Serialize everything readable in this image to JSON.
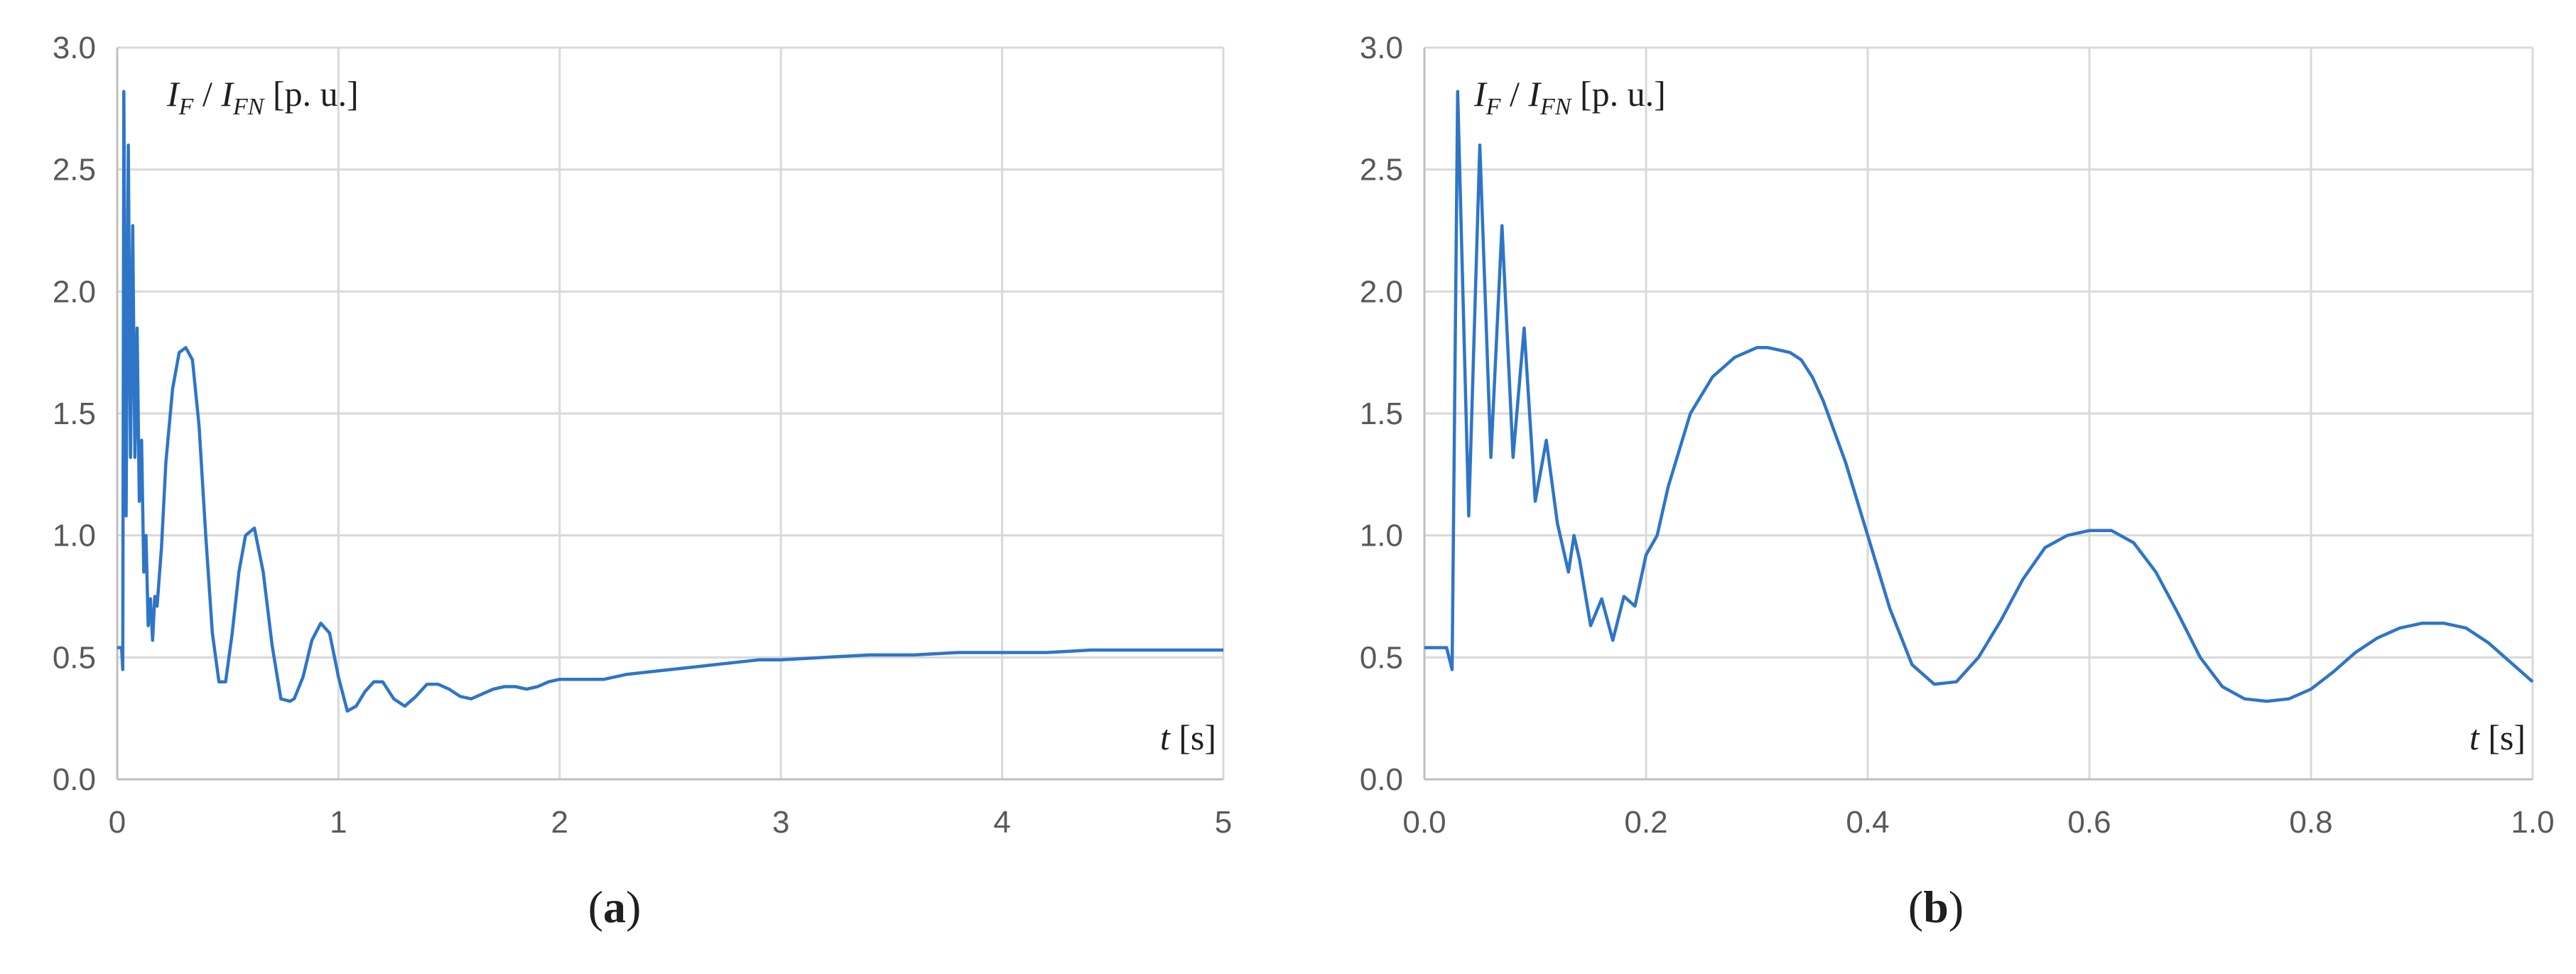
{
  "figure": {
    "captions": [
      "(a)",
      "(b)"
    ]
  },
  "chart_data": [
    {
      "panel": "a",
      "type": "line",
      "ylabel_parts": {
        "num": "I",
        "num_sub": "F",
        "sep": " / ",
        "den": "I",
        "den_sub": "FN",
        "unit": " [p. u.]"
      },
      "xlabel_parts": {
        "var": "t",
        "unit": " [s]"
      },
      "xlim": [
        0,
        5
      ],
      "ylim": [
        0,
        3
      ],
      "x_ticks": [
        "0",
        "1",
        "2",
        "3",
        "4",
        "5"
      ],
      "y_ticks": [
        "0.0",
        "0.5",
        "1.0",
        "1.5",
        "2.0",
        "2.5",
        "3.0"
      ],
      "grid": true,
      "color": "#2e75c8",
      "series": [
        {
          "x": [
            0,
            0.02,
            0.025,
            0.03,
            0.04,
            0.05,
            0.06,
            0.07,
            0.08,
            0.09,
            0.1,
            0.11,
            0.12,
            0.13,
            0.14,
            0.15,
            0.16,
            0.17,
            0.18,
            0.2,
            0.22,
            0.25,
            0.28,
            0.31,
            0.34,
            0.37,
            0.4,
            0.43,
            0.46,
            0.49,
            0.52,
            0.55,
            0.58,
            0.62,
            0.66,
            0.7,
            0.74,
            0.78,
            0.8,
            0.84,
            0.88,
            0.92,
            0.96,
            1.0,
            1.04,
            1.08,
            1.12,
            1.16,
            1.2,
            1.25,
            1.3,
            1.35,
            1.4,
            1.45,
            1.5,
            1.55,
            1.6,
            1.65,
            1.7,
            1.75,
            1.8,
            1.85,
            1.9,
            1.95,
            2.0,
            2.1,
            2.2,
            2.3,
            2.4,
            2.5,
            2.6,
            2.7,
            2.8,
            2.9,
            3.0,
            3.2,
            3.4,
            3.6,
            3.8,
            4.0,
            4.2,
            4.4,
            4.6,
            4.8,
            5.0
          ],
          "y": [
            0.54,
            0.54,
            0.45,
            2.82,
            1.08,
            2.6,
            1.32,
            2.27,
            1.32,
            1.85,
            1.14,
            1.39,
            0.85,
            1.0,
            0.63,
            0.74,
            0.57,
            0.75,
            0.71,
            0.95,
            1.3,
            1.6,
            1.75,
            1.77,
            1.72,
            1.45,
            1.0,
            0.6,
            0.4,
            0.4,
            0.6,
            0.85,
            1.0,
            1.03,
            0.85,
            0.55,
            0.33,
            0.32,
            0.33,
            0.42,
            0.57,
            0.64,
            0.6,
            0.42,
            0.28,
            0.3,
            0.36,
            0.4,
            0.4,
            0.33,
            0.3,
            0.34,
            0.39,
            0.39,
            0.37,
            0.34,
            0.33,
            0.35,
            0.37,
            0.38,
            0.38,
            0.37,
            0.38,
            0.4,
            0.41,
            0.41,
            0.41,
            0.43,
            0.44,
            0.45,
            0.46,
            0.47,
            0.48,
            0.49,
            0.49,
            0.5,
            0.51,
            0.51,
            0.52,
            0.52,
            0.52,
            0.53,
            0.53,
            0.53,
            0.53
          ]
        }
      ]
    },
    {
      "panel": "b",
      "type": "line",
      "ylabel_parts": {
        "num": "I",
        "num_sub": "F",
        "sep": " / ",
        "den": "I",
        "den_sub": "FN",
        "unit": " [p. u.]"
      },
      "xlabel_parts": {
        "var": "t",
        "unit": " [s]"
      },
      "xlim": [
        0,
        1
      ],
      "ylim": [
        0,
        3
      ],
      "x_ticks": [
        "0.0",
        "0.2",
        "0.4",
        "0.6",
        "0.8",
        "1.0"
      ],
      "y_ticks": [
        "0.0",
        "0.5",
        "1.0",
        "1.5",
        "2.0",
        "2.5",
        "3.0"
      ],
      "grid": true,
      "color": "#2e75c8",
      "series": [
        {
          "x": [
            0.0,
            0.02,
            0.025,
            0.03,
            0.04,
            0.05,
            0.06,
            0.07,
            0.08,
            0.09,
            0.1,
            0.11,
            0.12,
            0.13,
            0.135,
            0.14,
            0.15,
            0.16,
            0.17,
            0.18,
            0.19,
            0.2,
            0.21,
            0.22,
            0.23,
            0.24,
            0.26,
            0.28,
            0.3,
            0.31,
            0.32,
            0.33,
            0.34,
            0.35,
            0.36,
            0.38,
            0.4,
            0.42,
            0.44,
            0.46,
            0.48,
            0.5,
            0.52,
            0.54,
            0.56,
            0.58,
            0.6,
            0.62,
            0.64,
            0.66,
            0.68,
            0.7,
            0.72,
            0.74,
            0.76,
            0.78,
            0.8,
            0.82,
            0.84,
            0.86,
            0.88,
            0.9,
            0.92,
            0.94,
            0.96,
            0.98,
            1.0
          ],
          "y": [
            0.54,
            0.54,
            0.45,
            2.82,
            1.08,
            2.6,
            1.32,
            2.27,
            1.32,
            1.85,
            1.14,
            1.39,
            1.05,
            0.85,
            1.0,
            0.9,
            0.63,
            0.74,
            0.57,
            0.75,
            0.71,
            0.92,
            1.0,
            1.2,
            1.35,
            1.5,
            1.65,
            1.73,
            1.77,
            1.77,
            1.76,
            1.75,
            1.72,
            1.65,
            1.55,
            1.3,
            1.0,
            0.7,
            0.47,
            0.39,
            0.4,
            0.5,
            0.65,
            0.82,
            0.95,
            1.0,
            1.02,
            1.02,
            0.97,
            0.85,
            0.68,
            0.5,
            0.38,
            0.33,
            0.32,
            0.33,
            0.37,
            0.44,
            0.52,
            0.58,
            0.62,
            0.64,
            0.64,
            0.62,
            0.56,
            0.48,
            0.4
          ]
        }
      ]
    }
  ]
}
